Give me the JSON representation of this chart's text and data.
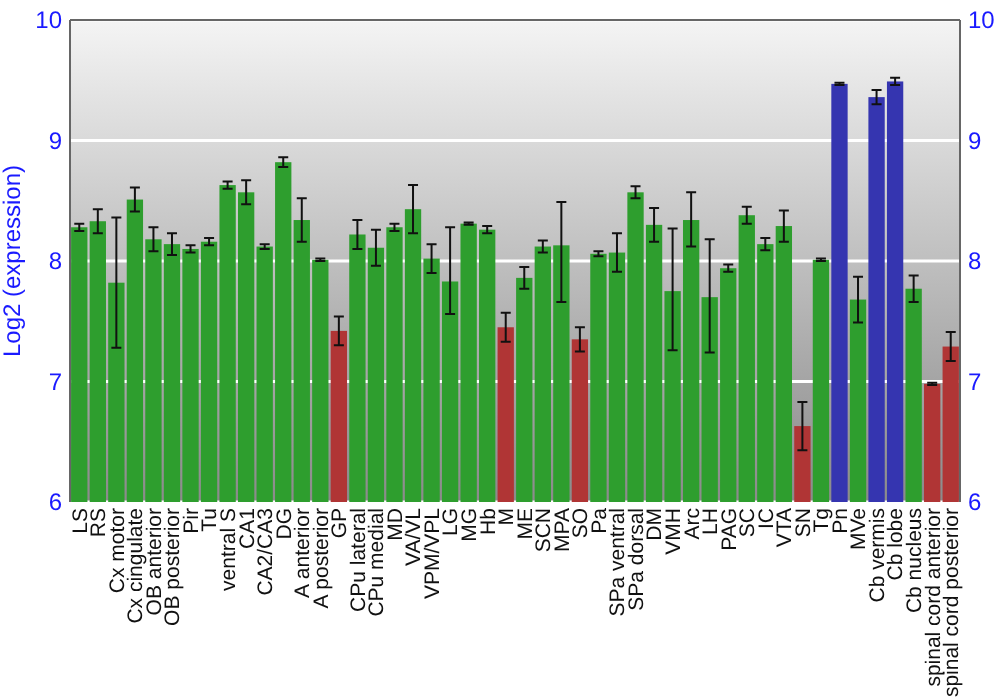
{
  "chart_data": {
    "type": "bar",
    "ylabel": "Log2 (expression)",
    "categories": [
      "LS",
      "RS",
      "Cx motor",
      "Cx cingulate",
      "OB anterior",
      "OB posterior",
      "Pir",
      "Tu",
      "ventral S",
      "CA1",
      "CA2/CA3",
      "DG",
      "A anterior",
      "A posterior",
      "GP",
      "CPu lateral",
      "CPu medial",
      "MD",
      "VA/VL",
      "VPM/VPL",
      "LG",
      "MG",
      "Hb",
      "M",
      "ME",
      "SCN",
      "MPA",
      "SO",
      "Pa",
      "SPa ventral",
      "SPa dorsal",
      "DM",
      "VMH",
      "Arc",
      "LH",
      "PAG",
      "SC",
      "IC",
      "VTA",
      "SN",
      "Tg",
      "Pn",
      "MVe",
      "Cb vermis",
      "Cb lobe",
      "Cb nucleus",
      "spinal cord anterior",
      "spinal cord posterior"
    ],
    "values": [
      8.28,
      8.33,
      7.82,
      8.51,
      8.18,
      8.14,
      8.1,
      8.16,
      8.63,
      8.57,
      8.12,
      8.82,
      8.34,
      8.01,
      7.42,
      8.22,
      8.11,
      8.28,
      8.43,
      8.02,
      7.83,
      8.31,
      8.26,
      7.45,
      7.86,
      8.12,
      8.13,
      7.35,
      8.06,
      8.07,
      8.57,
      8.3,
      7.75,
      8.34,
      7.7,
      7.94,
      8.38,
      8.14,
      8.29,
      6.63,
      8.01,
      9.47,
      7.68,
      9.36,
      9.49,
      7.77,
      6.98,
      7.29
    ],
    "errors": [
      0.03,
      0.1,
      [
        7.28,
        8.36
      ],
      0.1,
      0.1,
      0.09,
      0.03,
      0.03,
      0.03,
      0.1,
      0.02,
      0.04,
      0.18,
      0.01,
      0.12,
      0.12,
      0.15,
      0.03,
      0.2,
      0.12,
      [
        7.56,
        8.28
      ],
      0.01,
      0.03,
      0.12,
      0.09,
      0.05,
      [
        7.66,
        8.49
      ],
      0.1,
      0.02,
      0.16,
      0.05,
      0.14,
      [
        7.26,
        8.27
      ],
      [
        8.12,
        8.57
      ],
      [
        7.24,
        8.18
      ],
      0.03,
      0.07,
      0.05,
      0.13,
      0.2,
      0.01,
      0.01,
      0.19,
      0.06,
      0.03,
      0.11,
      0.01,
      0.12
    ],
    "colors": [
      "#2e9e2e",
      "#2e9e2e",
      "#2e9e2e",
      "#2e9e2e",
      "#2e9e2e",
      "#2e9e2e",
      "#2e9e2e",
      "#2e9e2e",
      "#2e9e2e",
      "#2e9e2e",
      "#2e9e2e",
      "#2e9e2e",
      "#2e9e2e",
      "#2e9e2e",
      "#b03535",
      "#2e9e2e",
      "#2e9e2e",
      "#2e9e2e",
      "#2e9e2e",
      "#2e9e2e",
      "#2e9e2e",
      "#2e9e2e",
      "#2e9e2e",
      "#b03535",
      "#2e9e2e",
      "#2e9e2e",
      "#2e9e2e",
      "#b03535",
      "#2e9e2e",
      "#2e9e2e",
      "#2e9e2e",
      "#2e9e2e",
      "#2e9e2e",
      "#2e9e2e",
      "#2e9e2e",
      "#2e9e2e",
      "#2e9e2e",
      "#2e9e2e",
      "#2e9e2e",
      "#b03535",
      "#2e9e2e",
      "#3535b0",
      "#2e9e2e",
      "#3535b0",
      "#3535b0",
      "#2e9e2e",
      "#b03535",
      "#b03535"
    ],
    "ylim": [
      6,
      10
    ],
    "yticks": [
      6,
      7,
      8,
      9,
      10
    ],
    "y2lim": [
      6,
      10
    ],
    "y2ticks": [
      6,
      7,
      8,
      9,
      10
    ],
    "grid": "y"
  }
}
